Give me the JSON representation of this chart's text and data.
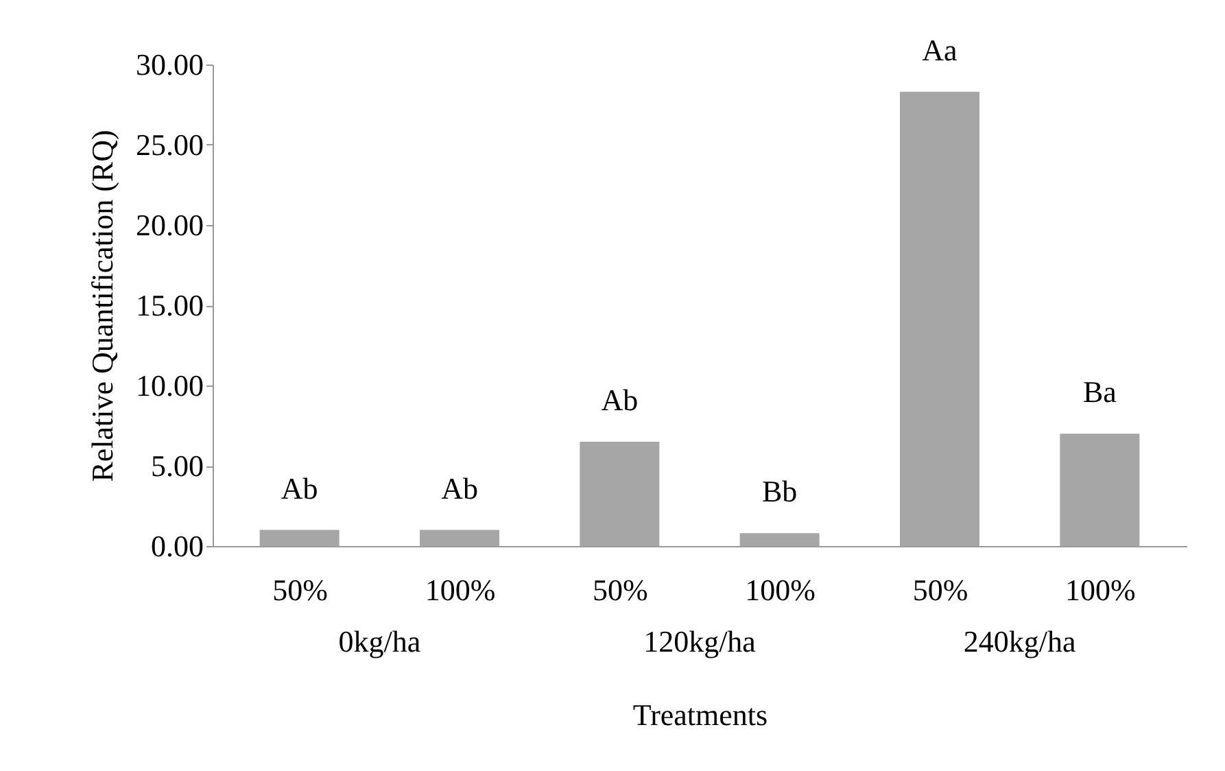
{
  "chart_data": {
    "type": "bar",
    "xlabel": "Treatments",
    "ylabel": "Relative Quantification (RQ)",
    "categories": [
      "50%",
      "100%",
      "50%",
      "100%",
      "50%",
      "100%"
    ],
    "values": [
      1.0,
      1.0,
      6.5,
      0.8,
      28.3,
      7.0
    ],
    "color": "#a6a6a6",
    "value_labels": [
      "Ab",
      "Ab",
      "Ab",
      "Bb",
      "Aa",
      "Ba"
    ],
    "annotations": [
      "0kg/ha",
      "120kg/ha",
      "240kg/ha"
    ],
    "ylim": [
      0,
      30
    ],
    "yticks": [
      {
        "value": 0,
        "label": "0.00"
      },
      {
        "value": 5,
        "label": "5.00"
      },
      {
        "value": 10,
        "label": "10.00"
      },
      {
        "value": 15,
        "label": "15.00"
      },
      {
        "value": 20,
        "label": "20.00"
      },
      {
        "value": 25,
        "label": "25.00"
      },
      {
        "value": 30,
        "label": "30.00"
      }
    ]
  }
}
